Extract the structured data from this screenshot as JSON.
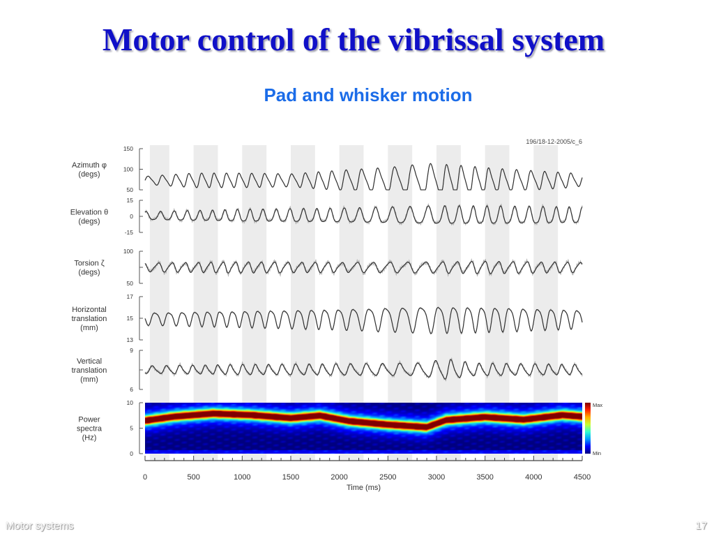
{
  "slide": {
    "title": "Motor control of the vibrissal system",
    "subtitle": "Pad and whisker motion",
    "footer_left": "Motor systems",
    "page_number": "17"
  },
  "colors": {
    "title": "#1010c8",
    "subtitle": "#1b6ce8",
    "shade_band": "#ececec",
    "trace": "#2a2a2a",
    "trace_noise": "#b0b0b0",
    "colormap": [
      "#00007f",
      "#0000ff",
      "#00a0ff",
      "#30ffd0",
      "#c8ff30",
      "#ffb000",
      "#ff2000",
      "#800000"
    ]
  },
  "chart_data": {
    "type": "line",
    "figure_id": "196/18-12-2005/c_6",
    "xlabel": "Time (ms)",
    "xlim": [
      0,
      4500
    ],
    "xticks": [
      0,
      500,
      1000,
      1500,
      2000,
      2500,
      3000,
      3500,
      4000,
      4500
    ],
    "shaded_intervals_ms": [
      [
        50,
        250
      ],
      [
        500,
        750
      ],
      [
        1000,
        1250
      ],
      [
        1500,
        1750
      ],
      [
        2000,
        2250
      ],
      [
        2500,
        2750
      ],
      [
        3000,
        3250
      ],
      [
        3500,
        3750
      ],
      [
        4000,
        4250
      ]
    ],
    "panels": [
      {
        "label": [
          "Azimuth φ",
          "(degs)"
        ],
        "ylim": [
          50,
          150
        ],
        "yticks": [
          "150",
          "100",
          "50"
        ],
        "tickvals": [
          150,
          100,
          50
        ],
        "baseline": 73,
        "noise": 0.5,
        "amplitude_keys": [
          [
            0,
            10
          ],
          [
            500,
            18
          ],
          [
            1000,
            18
          ],
          [
            1500,
            16
          ],
          [
            2000,
            25
          ],
          [
            2500,
            32
          ],
          [
            2900,
            42
          ],
          [
            3200,
            38
          ],
          [
            3600,
            30
          ],
          [
            4000,
            24
          ],
          [
            4400,
            18
          ],
          [
            4500,
            14
          ]
        ]
      },
      {
        "label": [
          "Elevation θ",
          "(degs)"
        ],
        "ylim": [
          -15,
          15
        ],
        "yticks": [
          "15",
          "0",
          "-15"
        ],
        "tickvals": [
          15,
          0,
          -15
        ],
        "baseline": 0,
        "noise": 1.2,
        "amplitude_keys": [
          [
            0,
            4
          ],
          [
            1000,
            6
          ],
          [
            2000,
            7
          ],
          [
            2500,
            8
          ],
          [
            3000,
            9
          ],
          [
            3500,
            9
          ],
          [
            4500,
            8
          ]
        ]
      },
      {
        "label": [
          "Torsion ζ",
          "(degs)"
        ],
        "ylim": [
          50,
          100
        ],
        "yticks": [
          "100",
          "",
          "50"
        ],
        "tickvals": [
          100,
          75,
          50
        ],
        "baseline": 75,
        "noise": 2.5,
        "amplitude_keys": [
          [
            0,
            7
          ],
          [
            1000,
            9
          ],
          [
            2000,
            8
          ],
          [
            3000,
            9
          ],
          [
            3500,
            10
          ],
          [
            4500,
            8
          ]
        ]
      },
      {
        "label": [
          "Horizontal",
          "translation",
          "(mm)"
        ],
        "ylim": [
          13,
          17
        ],
        "yticks": [
          "17",
          "15",
          "13"
        ],
        "tickvals": [
          17,
          15,
          13
        ],
        "baseline": 15,
        "noise": 0.05,
        "amplitude_keys": [
          [
            0,
            0.6
          ],
          [
            1000,
            0.8
          ],
          [
            2000,
            1.0
          ],
          [
            2600,
            1.2
          ],
          [
            3000,
            1.3
          ],
          [
            3600,
            1.2
          ],
          [
            4500,
            0.9
          ]
        ]
      },
      {
        "label": [
          "Vertical",
          "translation",
          "(mm)"
        ],
        "ylim": [
          6,
          9
        ],
        "yticks": [
          "9",
          "",
          "6"
        ],
        "tickvals": [
          9,
          7.5,
          6
        ],
        "baseline": 7.5,
        "noise": 0.1,
        "amplitude_keys": [
          [
            0,
            0.3
          ],
          [
            1000,
            0.4
          ],
          [
            2000,
            0.45
          ],
          [
            2800,
            0.5
          ],
          [
            3100,
            0.8
          ],
          [
            3400,
            0.5
          ],
          [
            4500,
            0.4
          ]
        ]
      },
      {
        "label": [
          "Power",
          "spectra",
          "(Hz)"
        ],
        "type": "heatmap",
        "ylim": [
          0,
          10
        ],
        "yticks": [
          "10",
          "5",
          "0"
        ],
        "tickvals": [
          10,
          5,
          0
        ],
        "colorbar": [
          "Max",
          "Min"
        ],
        "peak_frequency_keys": [
          [
            0,
            6.5
          ],
          [
            300,
            7.3
          ],
          [
            700,
            7.9
          ],
          [
            1100,
            7.6
          ],
          [
            1500,
            7.0
          ],
          [
            1800,
            7.5
          ],
          [
            2100,
            6.4
          ],
          [
            2500,
            5.7
          ],
          [
            2900,
            5.2
          ],
          [
            3100,
            6.6
          ],
          [
            3500,
            7.2
          ],
          [
            3900,
            6.7
          ],
          [
            4300,
            7.6
          ],
          [
            4500,
            7.3
          ]
        ]
      }
    ]
  }
}
